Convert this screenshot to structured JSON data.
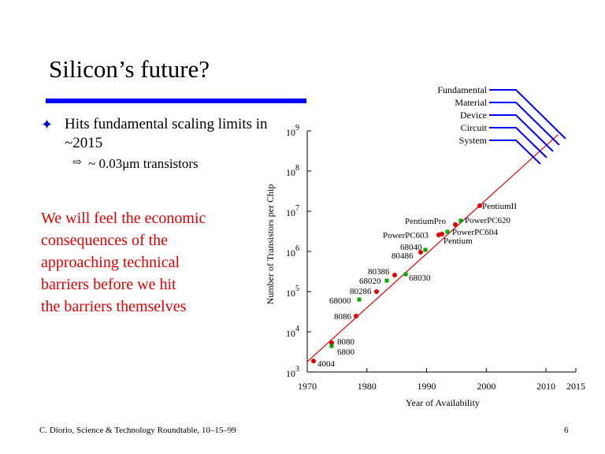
{
  "slide": {
    "title": "Silicon’s future?",
    "bullet": "Hits fundamental scaling limits in ~2015",
    "sub_bullet": "~ 0.03μm transistors",
    "red_text": [
      "We will feel the economic",
      "consequences of the",
      "approaching technical",
      "barriers before we hit",
      "the barriers themselves"
    ],
    "footer_left": "C. Diorio, Science & Technology Roundtable, 10–15–99",
    "page_number": "6",
    "accent_color": "#0000ff",
    "text_red": "#e00000"
  },
  "chart_data": {
    "type": "scatter",
    "title": "",
    "xlabel": "Year of Availability",
    "ylabel": "Number of Transistors per Chip",
    "xlim": [
      1970,
      2015
    ],
    "ylim_exponent": [
      3,
      9
    ],
    "y_scale": "log10",
    "x_ticks": [
      "1970",
      "1980",
      "1990",
      "2000",
      "2010",
      "2015"
    ],
    "x_tick_values": [
      1970,
      1980,
      1990,
      2000,
      2010,
      2015
    ],
    "y_ticks": [
      {
        "base": "10",
        "exp": "3",
        "value": 1000
      },
      {
        "base": "10",
        "exp": "4",
        "value": 10000
      },
      {
        "base": "10",
        "exp": "5",
        "value": 100000
      },
      {
        "base": "10",
        "exp": "6",
        "value": 1000000
      },
      {
        "base": "10",
        "exp": "7",
        "value": 10000000
      },
      {
        "base": "10",
        "exp": "8",
        "value": 100000000
      },
      {
        "base": "10",
        "exp": "9",
        "value": 1000000000
      }
    ],
    "trend_line": {
      "x": [
        1970,
        2012
      ],
      "y": [
        1800,
        800000000
      ],
      "color": "#e00000"
    },
    "series": [
      {
        "marker_color": "#e00000",
        "points": [
          {
            "label": "4004",
            "x": 1971,
            "y": 2300
          },
          {
            "label": "8080",
            "x": 1974,
            "y": 6000
          },
          {
            "label": "8086",
            "x": 1978,
            "y": 29000
          },
          {
            "label": "80286",
            "x": 1982,
            "y": 120000
          },
          {
            "label": "80386",
            "x": 1985,
            "y": 300000
          },
          {
            "label": "80486",
            "x": 1989,
            "y": 1200000
          },
          {
            "label": "PowerPC603",
            "x": 1993,
            "y": 3100000
          },
          {
            "label": "Pentium",
            "x": 1993,
            "y": 3100000
          },
          {
            "label": "PentiumPro",
            "x": 1995,
            "y": 5500000
          },
          {
            "label": "PentiumII",
            "x": 1997,
            "y": 7500000
          }
        ]
      },
      {
        "marker_color": "#00aa00",
        "points": [
          {
            "label": "6800",
            "x": 1974,
            "y": 4500
          },
          {
            "label": "68000",
            "x": 1979,
            "y": 68000
          },
          {
            "label": "68020",
            "x": 1984,
            "y": 200000
          },
          {
            "label": "68030",
            "x": 1987,
            "y": 270000
          },
          {
            "label": "68040",
            "x": 1990,
            "y": 1200000
          },
          {
            "label": "PowerPC604",
            "x": 1994,
            "y": 3600000
          },
          {
            "label": "PowerPC620",
            "x": 1996,
            "y": 6900000
          }
        ]
      }
    ],
    "limits": {
      "labels": [
        "Fundamental",
        "Material",
        "Device",
        "Circuit",
        "System"
      ],
      "color": "#0000ff"
    }
  }
}
